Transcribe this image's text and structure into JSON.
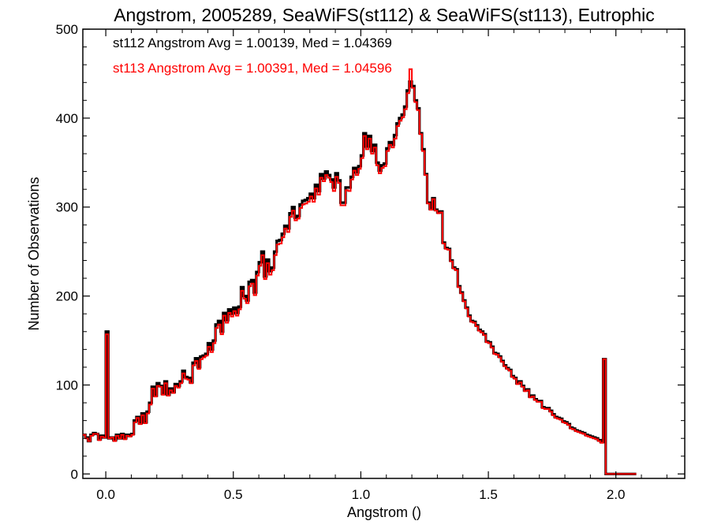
{
  "chart_data": {
    "type": "line",
    "title": "Angstrom, 2005289, SeaWiFS(st112) & SeaWiFS(st113), Eutrophic",
    "xlabel": "Angstrom ()",
    "ylabel": "Number of Observations",
    "xlim": [
      -0.09,
      2.27
    ],
    "ylim": [
      -5,
      500
    ],
    "xticks": [
      0.0,
      0.5,
      1.0,
      1.5,
      2.0
    ],
    "xtick_labels": [
      "0.0",
      "0.5",
      "1.0",
      "1.5",
      "2.0"
    ],
    "yticks": [
      0,
      100,
      200,
      300,
      400,
      500
    ],
    "ytick_labels": [
      "0",
      "100",
      "200",
      "300",
      "400",
      "500"
    ],
    "grid": false,
    "bin_width": 0.01,
    "bin_start": -0.09,
    "annotations": [
      {
        "text": "st112 Angstrom Avg = 1.00139, Med = 1.04369",
        "color": "#000000"
      },
      {
        "text": "st113 Angstrom Avg = 1.00391, Med = 1.04596",
        "color": "#ff0000"
      }
    ],
    "series": [
      {
        "name": "st112",
        "color": "#000000",
        "values": [
          44,
          41,
          37,
          44,
          46,
          45,
          39,
          43,
          41,
          160,
          40,
          41,
          38,
          44,
          40,
          45,
          40,
          44,
          43,
          45,
          60,
          64,
          57,
          68,
          58,
          70,
          80,
          98,
          88,
          102,
          99,
          90,
          104,
          89,
          96,
          92,
          101,
          99,
          104,
          116,
          109,
          108,
          103,
          125,
          130,
          120,
          132,
          133,
          135,
          147,
          140,
          150,
          168,
          172,
          160,
          181,
          173,
          185,
          180,
          187,
          181,
          188,
          210,
          200,
          195,
          216,
          218,
          204,
          227,
          238,
          250,
          222,
          241,
          228,
          232,
          250,
          262,
          263,
          270,
          279,
          276,
          293,
          300,
          288,
          290,
          303,
          307,
          308,
          310,
          315,
          310,
          325,
          318,
          337,
          332,
          340,
          336,
          331,
          322,
          338,
          330,
          305,
          305,
          322,
          322,
          334,
          344,
          339,
          346,
          358,
          383,
          368,
          380,
          363,
          370,
          350,
          341,
          347,
          349,
          366,
          373,
          370,
          381,
          394,
          400,
          404,
          413,
          431,
          441,
          436,
          420,
          411,
          383,
          365,
          337,
          305,
          298,
          310,
          297,
          294,
          295,
          260,
          254,
          253,
          240,
          232,
          230,
          211,
          204,
          195,
          187,
          178,
          172,
          171,
          167,
          162,
          160,
          157,
          149,
          148,
          143,
          136,
          135,
          132,
          127,
          122,
          119,
          117,
          110,
          108,
          102,
          104,
          99,
          94,
          95,
          87,
          88,
          84,
          82,
          82,
          75,
          74,
          74,
          71,
          67,
          64,
          63,
          62,
          59,
          58,
          56,
          52,
          51,
          49,
          48,
          47,
          46,
          44,
          43,
          42,
          41,
          40,
          38,
          36,
          129,
          0,
          0,
          0,
          0,
          0,
          0,
          0,
          0,
          0,
          0,
          0,
          0
        ]
      },
      {
        "name": "st113",
        "color": "#ff0000",
        "values": [
          44,
          40,
          37,
          43,
          45,
          45,
          38,
          42,
          41,
          157,
          40,
          41,
          37,
          43,
          40,
          44,
          39,
          43,
          42,
          44,
          58,
          63,
          56,
          66,
          57,
          68,
          78,
          96,
          87,
          99,
          98,
          89,
          102,
          88,
          94,
          91,
          99,
          97,
          102,
          113,
          107,
          106,
          102,
          122,
          127,
          118,
          129,
          131,
          133,
          143,
          137,
          147,
          164,
          168,
          157,
          178,
          170,
          181,
          177,
          183,
          178,
          185,
          206,
          197,
          192,
          211,
          214,
          201,
          223,
          234,
          246,
          219,
          237,
          224,
          229,
          246,
          258,
          259,
          266,
          276,
          272,
          289,
          296,
          285,
          287,
          299,
          303,
          304,
          306,
          312,
          306,
          321,
          314,
          333,
          329,
          336,
          333,
          328,
          318,
          334,
          327,
          302,
          302,
          319,
          318,
          331,
          341,
          336,
          343,
          355,
          380,
          365,
          377,
          360,
          367,
          347,
          338,
          344,
          346,
          363,
          370,
          367,
          377,
          391,
          397,
          401,
          410,
          428,
          455,
          434,
          418,
          409,
          382,
          363,
          336,
          304,
          297,
          309,
          296,
          293,
          294,
          259,
          253,
          252,
          239,
          231,
          229,
          210,
          203,
          194,
          186,
          177,
          171,
          170,
          166,
          161,
          159,
          156,
          148,
          147,
          142,
          135,
          134,
          131,
          126,
          121,
          118,
          116,
          109,
          107,
          101,
          103,
          98,
          93,
          94,
          86,
          87,
          83,
          81,
          81,
          74,
          73,
          73,
          70,
          66,
          63,
          62,
          61,
          58,
          57,
          55,
          51,
          50,
          48,
          47,
          46,
          45,
          43,
          42,
          41,
          40,
          39,
          37,
          35,
          129,
          0,
          0,
          0,
          0,
          0,
          0,
          0,
          0,
          0,
          0,
          0,
          0
        ]
      }
    ]
  }
}
